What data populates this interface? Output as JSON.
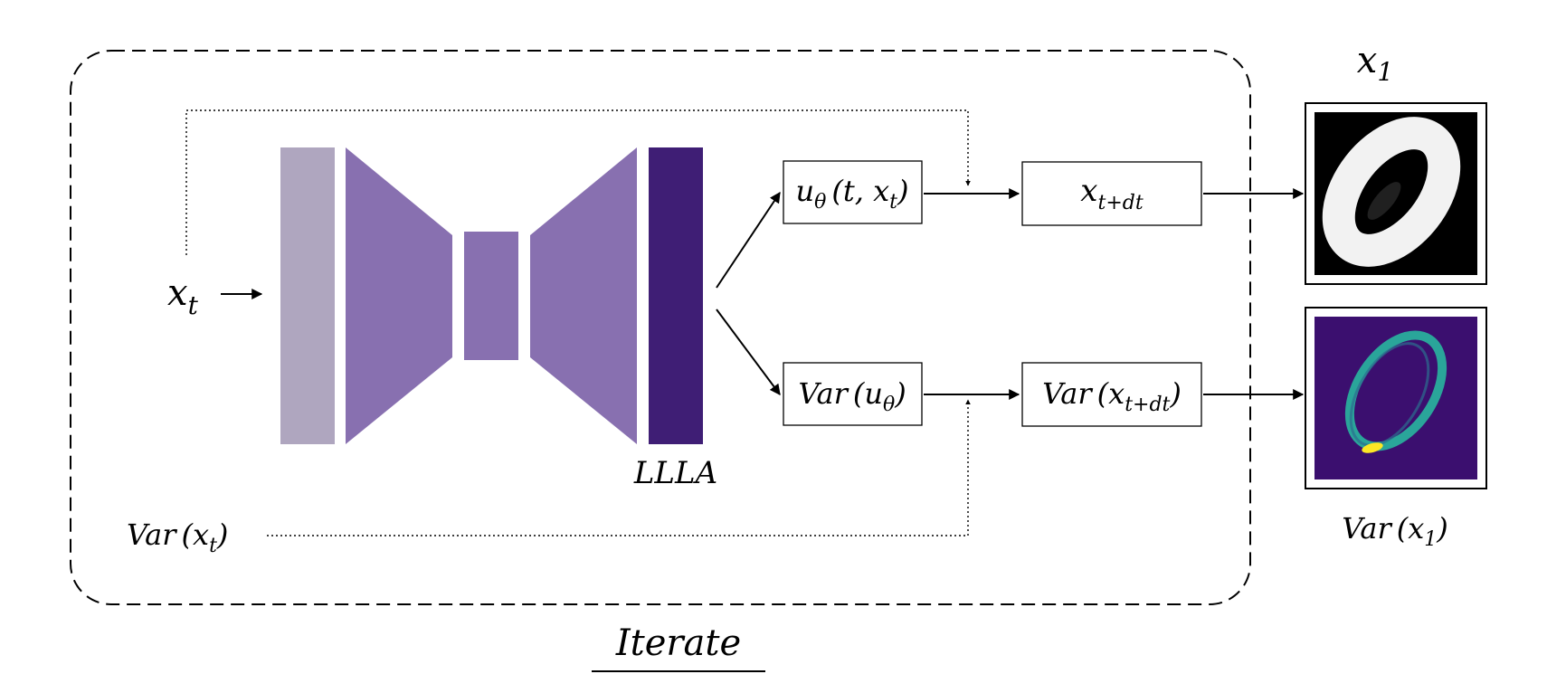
{
  "input": {
    "x_t": {
      "base": "x",
      "sub": "t"
    },
    "var_x_t": {
      "prefix": "Var",
      "open": "(",
      "base": "x",
      "sub": "t",
      "close": ")"
    }
  },
  "network": {
    "label": "LLLA",
    "colors": {
      "input_block": "#afa6bf",
      "encoder": "#8870b0",
      "bottleneck": "#8870b0",
      "decoder": "#8870b0",
      "llla_block": "#3f1e75"
    }
  },
  "outputs": {
    "u_theta": {
      "base": "u",
      "sub": "θ",
      "args": "(t, x",
      "args_sub": "t",
      "args_close": ")"
    },
    "var_u_theta": {
      "prefix": "Var",
      "open": "(u",
      "sub": "θ",
      "close": ")"
    },
    "x_t_dt": {
      "base": "x",
      "sub": "t+dt"
    },
    "var_x_t_dt": {
      "prefix": "Var",
      "open": "(x",
      "sub": "t+dt",
      "close": ")"
    }
  },
  "results": {
    "x1": {
      "base": "x",
      "sub": "1"
    },
    "var_x1": {
      "prefix": "Var",
      "open": "(x",
      "sub": "1",
      "close": ")"
    },
    "x1_image": {
      "icon": "digit-zero-sample",
      "colors": {
        "bg": "#000000",
        "fg": "#f2f2f2"
      }
    },
    "var_image": {
      "icon": "variance-heatmap",
      "colors": {
        "bg": "#3b0f6f",
        "ring": "#2aa59a",
        "hot": "#fde725"
      }
    }
  },
  "loop": {
    "label": "Iterate"
  }
}
